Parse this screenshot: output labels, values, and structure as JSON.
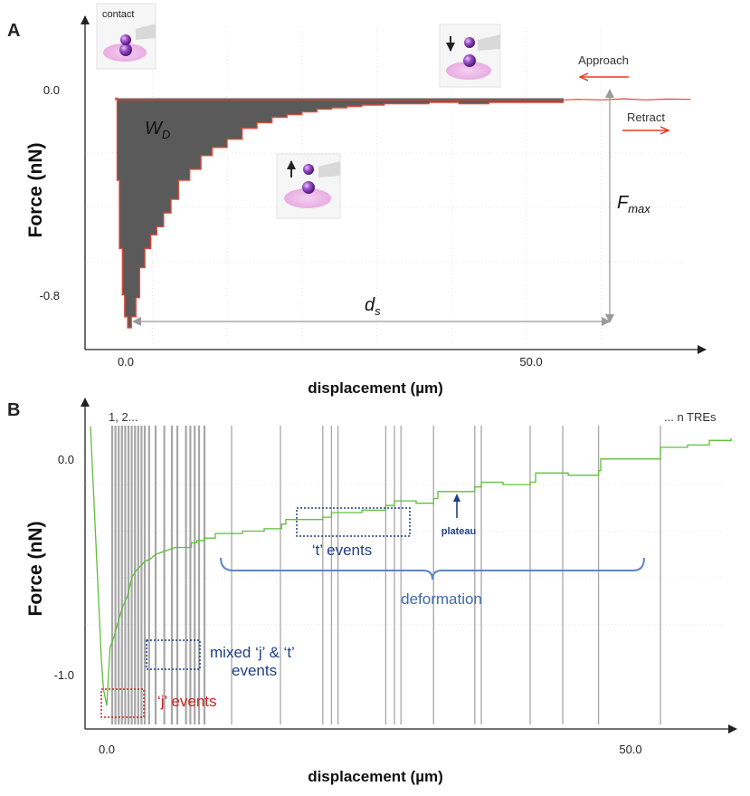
{
  "chart_data": [
    {
      "panel": "A",
      "type": "area",
      "ylabel": "Force (nN)",
      "xlabel": "displacement (µm)",
      "xticks": [
        "0.0",
        "50.0"
      ],
      "yticks": [
        "0.0",
        "-0.8"
      ],
      "xlim": [
        -4,
        79
      ],
      "ylim": [
        -0.92,
        0.3
      ],
      "series": [
        {
          "name": "Approach",
          "x": [
            0,
            5,
            10,
            20,
            30,
            40,
            50,
            53,
            55,
            58,
            60,
            62,
            65,
            68,
            71,
            74,
            77
          ],
          "y": [
            -0.005,
            -0.006,
            -0.006,
            -0.006,
            -0.006,
            -0.006,
            -0.006,
            -0.006,
            -0.006,
            -0.006,
            -0.006,
            -0.004,
            -0.006,
            -0.002,
            -0.006,
            -0.003,
            -0.004
          ]
        },
        {
          "name": "Retract",
          "x": [
            0,
            0.3,
            0.6,
            1.0,
            1.3,
            1.7,
            2.2,
            2.8,
            3.3,
            4.0,
            4.8,
            5.6,
            6.5,
            7.5,
            8.5,
            10,
            11.5,
            13,
            15,
            17,
            19,
            21,
            23,
            25,
            27,
            29,
            31,
            33,
            36,
            39,
            42,
            46,
            50,
            54,
            58,
            60
          ],
          "y": [
            0.0,
            -0.3,
            -0.55,
            -0.72,
            -0.8,
            -0.84,
            -0.8,
            -0.73,
            -0.62,
            -0.55,
            -0.5,
            -0.47,
            -0.42,
            -0.37,
            -0.3,
            -0.26,
            -0.21,
            -0.18,
            -0.15,
            -0.11,
            -0.09,
            -0.07,
            -0.06,
            -0.05,
            -0.04,
            -0.035,
            -0.03,
            -0.025,
            -0.02,
            -0.02,
            -0.015,
            -0.02,
            -0.015,
            -0.015,
            -0.015,
            -0.015
          ]
        }
      ],
      "annotations": {
        "work": "W",
        "work_sub": "D",
        "fmax": "F",
        "fmax_sub": "max",
        "ds": "d",
        "ds_sub": "s",
        "contact": "contact",
        "approach": "Approach",
        "retract": "Retract"
      },
      "colors": {
        "curve": "#d94a3a",
        "fill": "#5a5a5a",
        "arrow": "#e53b20"
      }
    },
    {
      "panel": "B",
      "type": "line",
      "ylabel": "Force (nN)",
      "xlabel": "displacement (µm)",
      "xticks": [
        "0.0",
        "50.0"
      ],
      "yticks": [
        "0.0",
        "-1.0"
      ],
      "xlim": [
        -1.5,
        58.5
      ],
      "ylim": [
        -1.25,
        0.17
      ],
      "series": [
        {
          "x": [
            -1,
            -0.6,
            -0.2,
            0.0,
            0.2,
            0.5,
            0.8,
            1.2,
            1.6,
            2.0,
            2.4,
            2.8,
            3.2,
            3.6,
            4.0,
            4.5,
            5.0,
            5.6,
            6.2,
            6.8,
            7.4,
            8.0,
            8.3,
            8.8,
            9.5,
            10.5,
            11.5,
            12.2,
            13,
            15,
            16.6,
            17,
            19,
            20.4,
            21.2,
            22,
            24,
            26.2,
            27,
            29,
            30.6,
            31,
            33,
            34.4,
            35,
            37,
            39.5,
            40,
            43,
            45.8,
            46,
            49,
            51,
            51.5,
            54,
            56,
            58
          ],
          "y": [
            0.05,
            -0.35,
            -0.75,
            -0.95,
            -1.08,
            -1.15,
            -0.9,
            -0.85,
            -0.78,
            -0.72,
            -0.68,
            -0.6,
            -0.57,
            -0.55,
            -0.53,
            -0.52,
            -0.5,
            -0.49,
            -0.48,
            -0.47,
            -0.47,
            -0.47,
            -0.45,
            -0.44,
            -0.43,
            -0.41,
            -0.41,
            -0.41,
            -0.4,
            -0.39,
            -0.37,
            -0.35,
            -0.35,
            -0.34,
            -0.32,
            -0.32,
            -0.31,
            -0.29,
            -0.27,
            -0.28,
            -0.26,
            -0.23,
            -0.23,
            -0.21,
            -0.19,
            -0.2,
            -0.19,
            -0.15,
            -0.16,
            -0.14,
            -0.09,
            -0.09,
            -0.09,
            -0.04,
            -0.03,
            -0.01,
            0.0
          ]
        }
      ],
      "tre_lines": [
        1.0,
        1.3,
        1.6,
        1.9,
        2.2,
        2.5,
        2.8,
        3.1,
        3.4,
        3.7,
        4.0,
        4.4,
        5.0,
        5.8,
        6.5,
        7.0,
        7.8,
        8.2,
        8.6,
        9.0,
        9.5,
        12.0,
        16.5,
        20.4,
        21.2,
        21.8,
        26.2,
        27.0,
        27.6,
        30.6,
        34.4,
        35.0,
        39.5,
        42.5,
        45.8,
        51.5
      ],
      "annotations": {
        "events_start": "1, 2...",
        "events_end": "... n TREs",
        "t_events": "‘t’ events",
        "plateau": "plateau",
        "deformation": "deformation",
        "mixed": "mixed ‘j’ & ‘t’",
        "mixed2": "events",
        "j_events": "‘j’ events"
      },
      "colors": {
        "curve": "#5fbf3a",
        "tre": "#8a8a8a",
        "blue": "#1f3f87",
        "red": "#cc2222"
      }
    }
  ]
}
